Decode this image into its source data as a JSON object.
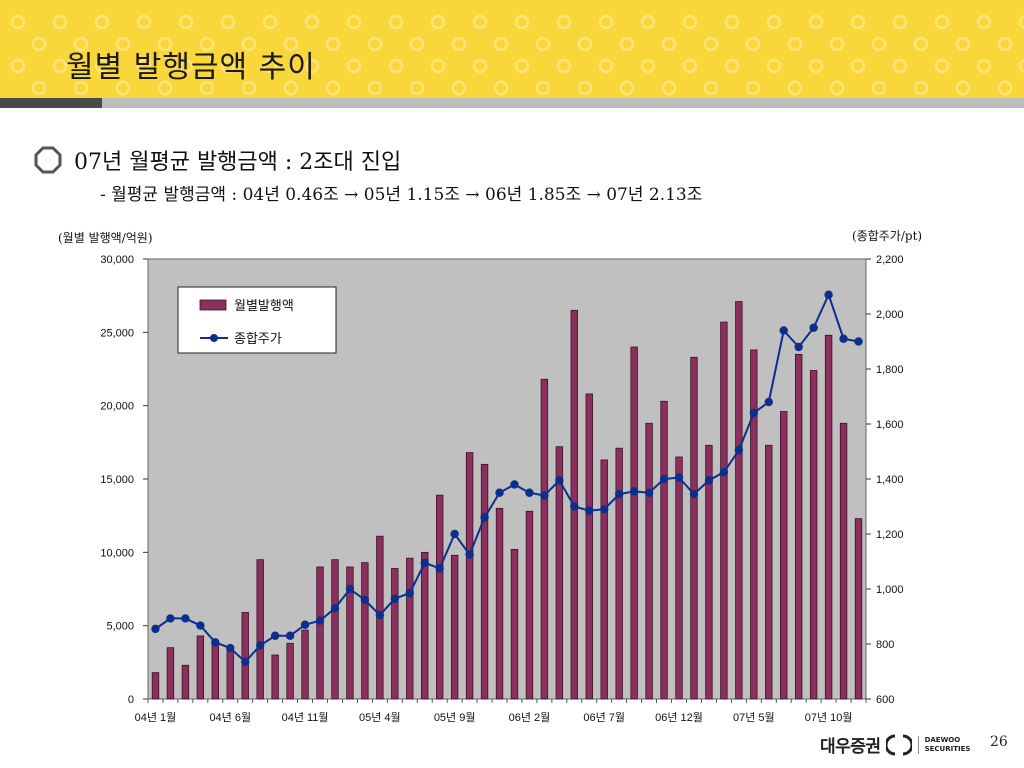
{
  "header": {
    "title": "월별 발행금액 추이"
  },
  "section": {
    "heading": "07년 월평균 발행금액 : 2조대 진입",
    "subline": "- 월평균 발행금액 : 04년 0.46조 → 05년 1.15조 → 06년 1.85조 → 07년 2.13조"
  },
  "footer": {
    "logo_ko": "대우증권",
    "logo_en_1": "DAEWOO",
    "logo_en_2": "SECURITIES",
    "page": "26"
  },
  "colors": {
    "header_bg": "#f9d63a",
    "plot_bg": "#c0c0c0",
    "bar": "#8b2f5e",
    "line": "#0d2f8c"
  },
  "chart_data": {
    "type": "bar",
    "title": "",
    "left_axis_title": "(월별 발행액/억원)",
    "right_axis_title": "(종합주가/pt)",
    "ylim": [
      0,
      30000
    ],
    "y2lim": [
      600,
      2200
    ],
    "left_ticks": [
      "0",
      "5,000",
      "10,000",
      "15,000",
      "20,000",
      "25,000",
      "30,000"
    ],
    "right_ticks": [
      "600",
      "800",
      "1,000",
      "1,200",
      "1,400",
      "1,600",
      "1,800",
      "2,000",
      "2,200"
    ],
    "x_tick_labels": [
      "04년 1월",
      "04년 6월",
      "04년 11월",
      "05년 4월",
      "05년 9월",
      "06년 2월",
      "06년 7월",
      "06년 12월",
      "07년 5월",
      "07년 10월"
    ],
    "x_tick_indices": [
      0,
      5,
      10,
      15,
      20,
      25,
      30,
      35,
      40,
      45
    ],
    "legend_position": "top-left",
    "series": [
      {
        "name": "월별발행액",
        "kind": "bar",
        "axis": "left",
        "values": [
          1800,
          3500,
          2300,
          4300,
          4000,
          3300,
          5900,
          9500,
          3000,
          3800,
          4700,
          9000,
          9500,
          9000,
          9300,
          11100,
          8900,
          9600,
          10000,
          13900,
          9800,
          16800,
          16000,
          13000,
          10200,
          12800,
          21800,
          17200,
          26500,
          20800,
          16300,
          17100,
          24000,
          18800,
          20300,
          16500,
          23300,
          17300,
          25700,
          27100,
          23800,
          17300,
          19600,
          23500,
          22400,
          24800,
          18800,
          12300
        ]
      },
      {
        "name": "종합주가",
        "kind": "line",
        "axis": "right",
        "values": [
          855,
          893,
          893,
          867,
          806,
          785,
          735,
          795,
          830,
          830,
          870,
          885,
          930,
          1000,
          960,
          905,
          965,
          985,
          1095,
          1075,
          1200,
          1125,
          1260,
          1350,
          1380,
          1350,
          1340,
          1395,
          1300,
          1285,
          1290,
          1345,
          1355,
          1350,
          1400,
          1405,
          1345,
          1395,
          1425,
          1505,
          1640,
          1680,
          1940,
          1880,
          1950,
          2070,
          1910,
          1900
        ]
      }
    ]
  }
}
